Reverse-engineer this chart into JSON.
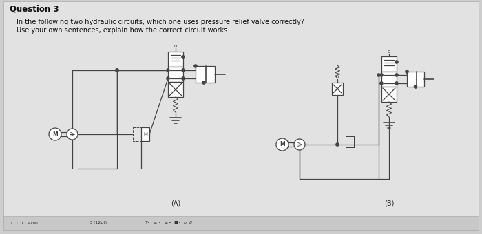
{
  "title": "Question 3",
  "line1": "In the following two hydraulic circuits, which one uses pressure relief valve correctly?",
  "line2": "Use your own sentences, explain how the correct circuit works.",
  "label_A": "(A)",
  "label_B": "(B)",
  "bg_color": "#cdcdcd",
  "page_color": "#e2e2e2",
  "diagram_color": "#444444",
  "toolbar_color": "#c8c8c8",
  "title_fontsize": 8.5,
  "text_fontsize": 7.0
}
